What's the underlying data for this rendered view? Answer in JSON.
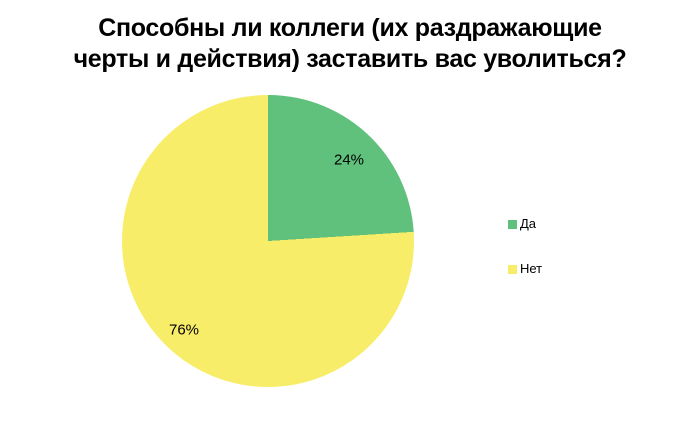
{
  "page": {
    "background_color": "#ffffff",
    "text_color": "#000000"
  },
  "chart_data": {
    "type": "pie",
    "title": "Способны ли коллеги (их раздражающие черты и действия) заставить вас уволиться?",
    "title_lines": [
      "Способны ли коллеги (их раздражающие",
      "черты и действия) заставить вас уволиться?"
    ],
    "labels": [
      "Да",
      "Нет"
    ],
    "values": [
      24,
      76
    ],
    "value_labels": [
      "24%",
      "76%"
    ],
    "colors": [
      "#5fc17c",
      "#f7ed68"
    ],
    "start_angle_deg": 0,
    "direction": "clockwise",
    "legend_position": "right",
    "grid": false
  }
}
